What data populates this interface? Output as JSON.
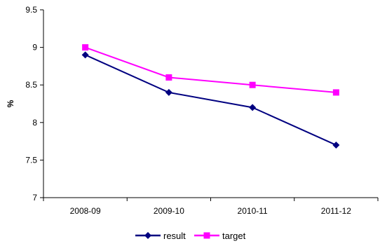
{
  "chart_data": {
    "type": "line",
    "categories": [
      "2008-09",
      "2009-10",
      "2010-11",
      "2011-12"
    ],
    "series": [
      {
        "name": "result",
        "values": [
          8.9,
          8.4,
          8.2,
          7.7
        ],
        "color": "#000080",
        "marker": "diamond"
      },
      {
        "name": "target",
        "values": [
          9.0,
          8.6,
          8.5,
          8.4
        ],
        "color": "#FF00FF",
        "marker": "square"
      }
    ],
    "ylabel": "%",
    "ylim": [
      7,
      9.5
    ],
    "yticks": [
      "7",
      "7.5",
      "8",
      "8.5",
      "9",
      "9.5"
    ],
    "grid": false,
    "legend_position": "bottom"
  }
}
